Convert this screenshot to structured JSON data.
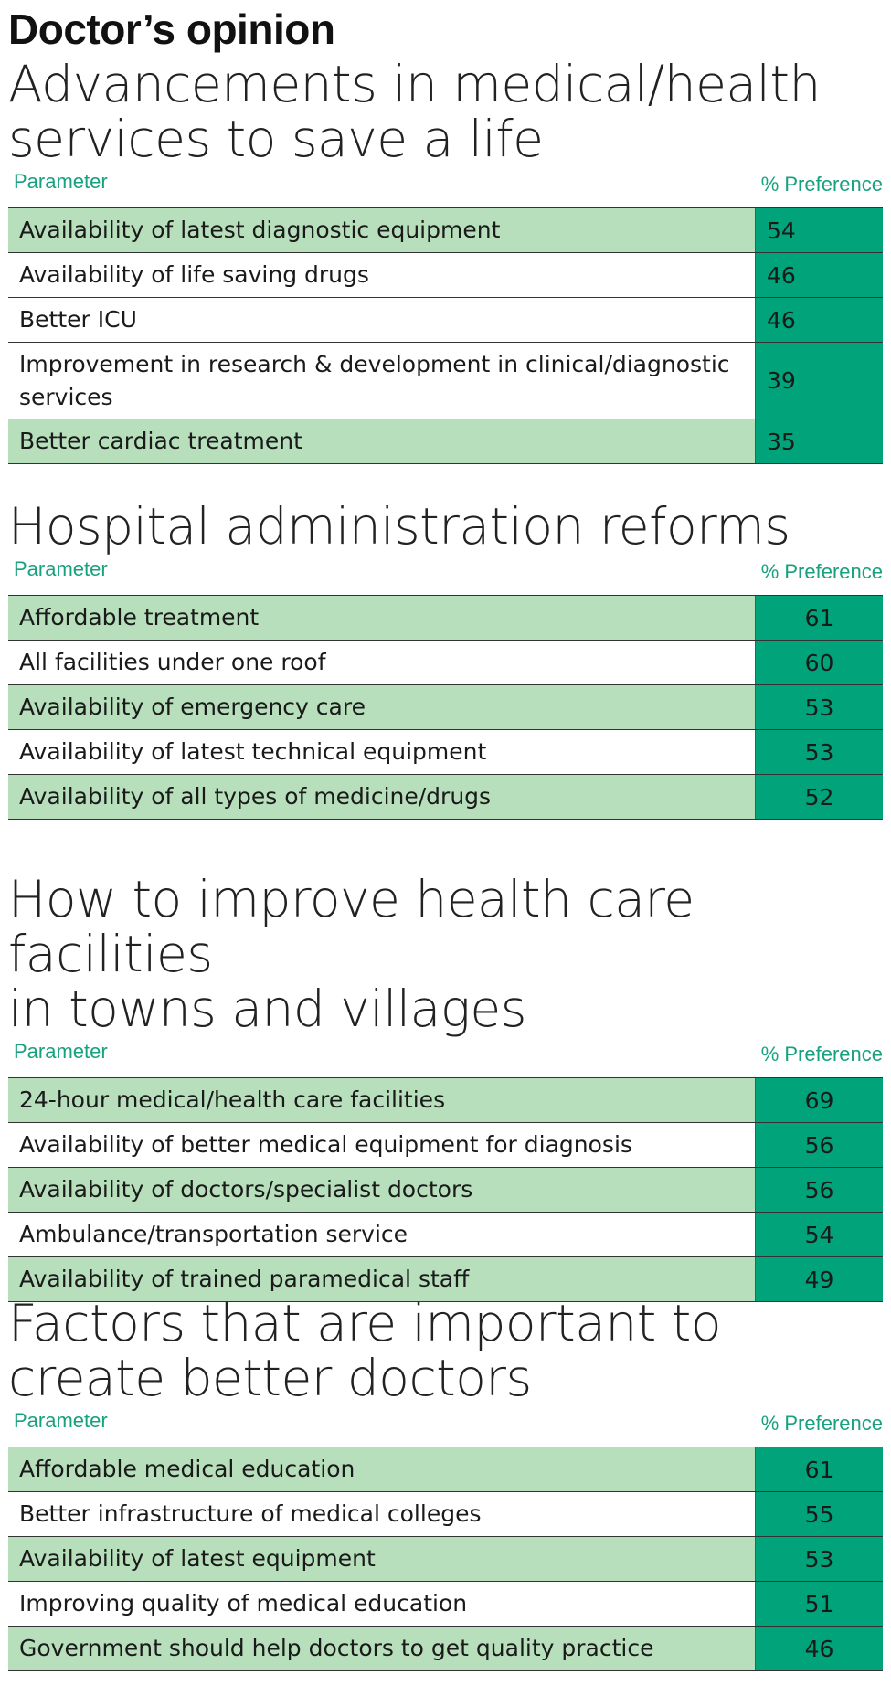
{
  "title": "Doctor’s opinion",
  "tables": [
    {
      "title": "Advancements in medical/health\nservices to save a life",
      "header_parameter": "Parameter",
      "header_preference": "% Preference",
      "rows": [
        {
          "label": "Availability of latest diagnostic equipment",
          "value": "54"
        },
        {
          "label": "Availability of life saving drugs",
          "value": "46"
        },
        {
          "label": "Better ICU",
          "value": "46"
        },
        {
          "label": "Improvement in research & development in clinical/diagnostic services",
          "value": "39"
        },
        {
          "label": "Better cardiac treatment",
          "value": "35"
        }
      ]
    },
    {
      "title": "Hospital administration reforms",
      "header_parameter": "Parameter",
      "header_preference": "% Preference",
      "rows": [
        {
          "label": "Affordable treatment",
          "value": "61"
        },
        {
          "label": "All facilities under one roof",
          "value": "60"
        },
        {
          "label": "Availability of emergency care",
          "value": "53"
        },
        {
          "label": "Availability of latest technical equipment",
          "value": "53"
        },
        {
          "label": "Availability of all types of medicine/drugs",
          "value": "52"
        }
      ]
    },
    {
      "title": "How to improve health care facilities\nin towns and villages",
      "header_parameter": "Parameter",
      "header_preference": "% Preference",
      "rows": [
        {
          "label": "24-hour medical/health care facilities",
          "value": "69"
        },
        {
          "label": "Availability of better medical equipment for diagnosis",
          "value": "56"
        },
        {
          "label": "Availability of doctors/specialist doctors",
          "value": "56"
        },
        {
          "label": "Ambulance/transportation service",
          "value": "54"
        },
        {
          "label": "Availability of trained paramedical staff",
          "value": "49"
        }
      ]
    },
    {
      "title": "Factors that are important to\ncreate better doctors",
      "header_parameter": "Parameter",
      "header_preference": "% Preference",
      "rows": [
        {
          "label": "Affordable medical education",
          "value": "61"
        },
        {
          "label": "Better infrastructure of medical colleges",
          "value": "55"
        },
        {
          "label": "Availability of latest equipment",
          "value": "53"
        },
        {
          "label": "Improving quality of medical education",
          "value": "51"
        },
        {
          "label": "Government should help doctors to get quality practice",
          "value": "46"
        }
      ]
    }
  ],
  "colors": {
    "accent": "#17a17e",
    "value_fill": "#00a37a",
    "row_shade": "#b7dfbc"
  },
  "chart_data": [
    {
      "type": "table",
      "title": "Advancements in medical/health services to save a life",
      "columns": [
        "Parameter",
        "% Preference"
      ],
      "categories": [
        "Availability of latest diagnostic equipment",
        "Availability of life saving drugs",
        "Better ICU",
        "Improvement in research & development in clinical/diagnostic services",
        "Better cardiac treatment"
      ],
      "values": [
        54,
        46,
        46,
        39,
        35
      ]
    },
    {
      "type": "table",
      "title": "Hospital administration reforms",
      "columns": [
        "Parameter",
        "% Preference"
      ],
      "categories": [
        "Affordable treatment",
        "All facilities under one roof",
        "Availability of emergency care",
        "Availability of latest technical equipment",
        "Availability of all types of medicine/drugs"
      ],
      "values": [
        61,
        60,
        53,
        53,
        52
      ]
    },
    {
      "type": "table",
      "title": "How to improve health care facilities in towns and villages",
      "columns": [
        "Parameter",
        "% Preference"
      ],
      "categories": [
        "24-hour medical/health care facilities",
        "Availability of better medical equipment for diagnosis",
        "Availability of doctors/specialist doctors",
        "Ambulance/transportation service",
        "Availability of trained paramedical staff"
      ],
      "values": [
        69,
        56,
        56,
        54,
        49
      ]
    },
    {
      "type": "table",
      "title": "Factors that are important to create better doctors",
      "columns": [
        "Parameter",
        "% Preference"
      ],
      "categories": [
        "Affordable medical education",
        "Better infrastructure of medical colleges",
        "Availability of latest equipment",
        "Improving quality of medical education",
        "Government should help doctors to get quality practice"
      ],
      "values": [
        61,
        55,
        53,
        51,
        46
      ]
    }
  ]
}
